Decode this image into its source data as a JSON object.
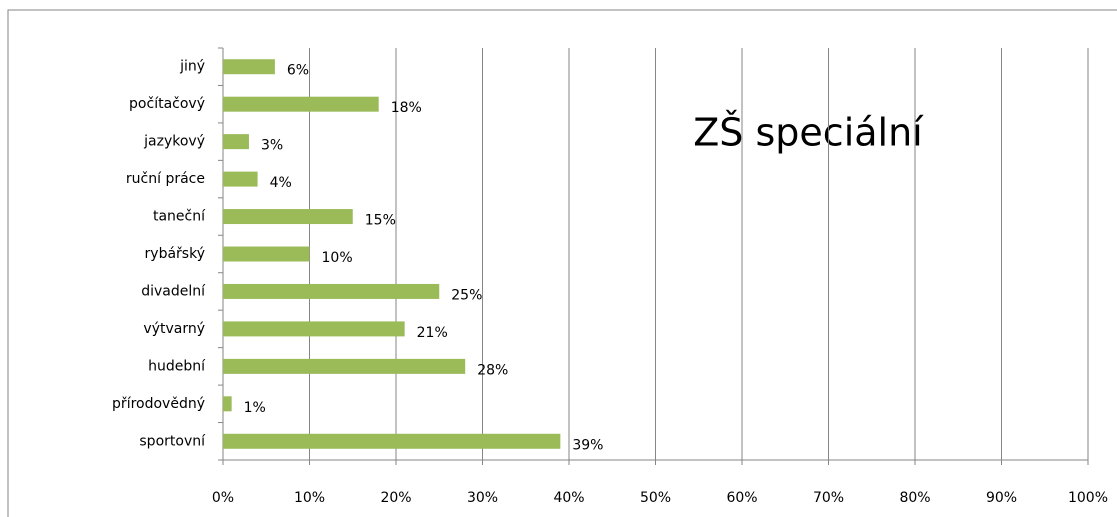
{
  "chart_data": {
    "type": "bar",
    "orientation": "horizontal",
    "title": "ZŠ speciální",
    "categories": [
      "jiný",
      "počítačový",
      "jazykový",
      "ruční práce",
      "taneční",
      "rybářský",
      "divadelní",
      "výtvarný",
      "hudební",
      "přírodovědný",
      "sportovní"
    ],
    "values": [
      6,
      18,
      3,
      4,
      15,
      10,
      25,
      21,
      28,
      1,
      39
    ],
    "value_labels": [
      "6%",
      "18%",
      "3%",
      "4%",
      "15%",
      "10%",
      "25%",
      "21%",
      "28%",
      "1%",
      "39%"
    ],
    "color": "#9bbb59",
    "xlim": [
      0,
      100
    ],
    "xticks": [
      {
        "value": 0,
        "label": "0%"
      },
      {
        "value": 10,
        "label": "10%"
      },
      {
        "value": 20,
        "label": "20%"
      },
      {
        "value": 30,
        "label": "30%"
      },
      {
        "value": 40,
        "label": "40%"
      },
      {
        "value": 50,
        "label": "50%"
      },
      {
        "value": 60,
        "label": "60%"
      },
      {
        "value": 70,
        "label": "70%"
      },
      {
        "value": 80,
        "label": "80%"
      },
      {
        "value": 90,
        "label": "90%"
      },
      {
        "value": 100,
        "label": "100%"
      }
    ],
    "grid": true
  }
}
